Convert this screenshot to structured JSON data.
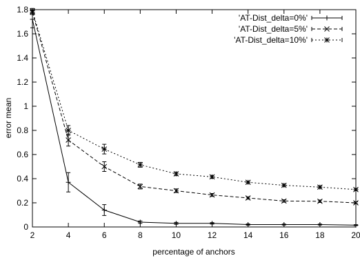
{
  "chart_data": {
    "type": "line",
    "xlabel": "percentage of anchors",
    "ylabel": "error mean",
    "xlim": [
      2,
      20
    ],
    "ylim": [
      0,
      1.8
    ],
    "xticks": [
      2,
      4,
      6,
      8,
      10,
      12,
      14,
      16,
      18,
      20
    ],
    "yticks": [
      0,
      0.2,
      0.4,
      0.6,
      0.8,
      1,
      1.2,
      1.4,
      1.6,
      1.8
    ],
    "grid": false,
    "legend_position": "top-right",
    "series": [
      {
        "name": "'AT-Dist_delta=0%'",
        "line_style": "solid",
        "marker": "plus",
        "x": [
          2,
          4,
          6,
          8,
          10,
          12,
          14,
          16,
          18,
          20
        ],
        "y": [
          1.72,
          0.37,
          0.14,
          0.04,
          0.03,
          0.03,
          0.02,
          0.02,
          0.02,
          0.015
        ],
        "error": [
          0.07,
          0.08,
          0.045,
          0.01,
          0.008,
          0.006,
          0.005,
          0.004,
          0.004,
          0.004
        ]
      },
      {
        "name": "'AT-Dist_delta=5%'",
        "line_style": "dashed",
        "marker": "x",
        "x": [
          2,
          4,
          6,
          8,
          10,
          12,
          14,
          16,
          18,
          20
        ],
        "y": [
          1.78,
          0.72,
          0.5,
          0.335,
          0.3,
          0.265,
          0.24,
          0.215,
          0.213,
          0.2
        ],
        "error": [
          0.02,
          0.05,
          0.04,
          0.02,
          0.015,
          0.012,
          0.01,
          0.01,
          0.01,
          0.008
        ]
      },
      {
        "name": "'AT-Dist_delta=10%'",
        "line_style": "dotted",
        "marker": "star",
        "x": [
          2,
          4,
          6,
          8,
          10,
          12,
          14,
          16,
          18,
          20
        ],
        "y": [
          1.79,
          0.8,
          0.645,
          0.515,
          0.44,
          0.415,
          0.37,
          0.345,
          0.33,
          0.31
        ],
        "error": [
          0.02,
          0.04,
          0.04,
          0.02,
          0.015,
          0.012,
          0.01,
          0.01,
          0.01,
          0.01
        ]
      }
    ]
  }
}
